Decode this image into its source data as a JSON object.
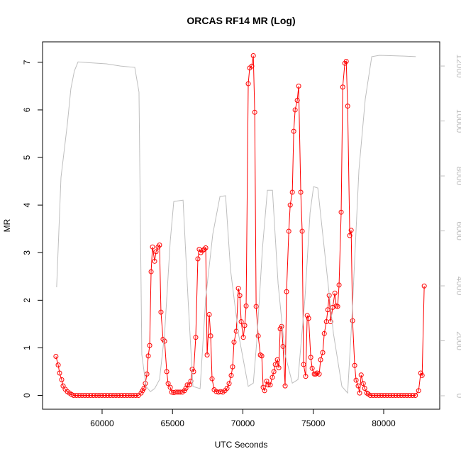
{
  "chart_data": {
    "type": "line",
    "title": "ORCAS RF14 MR (Log)",
    "x_label": "UTC Seconds",
    "y_label": "MR",
    "xlim": [
      55770,
      83980
    ],
    "xticks": [
      60000,
      65000,
      70000,
      75000,
      80000
    ],
    "ylim": [
      -0.29,
      7.43
    ],
    "yticks": [
      0,
      1,
      2,
      3,
      4,
      5,
      6,
      7
    ],
    "y2lim": [
      -490,
      12880
    ],
    "y2ticks": [
      0,
      2000,
      4000,
      6000,
      8000,
      10000,
      12000
    ],
    "y2_color": "#bebebe",
    "series": [
      {
        "color": "#ff0000",
        "marker": "circle",
        "x": [
          56720,
          56880,
          56980,
          57130,
          57230,
          57380,
          57530,
          57680,
          57830,
          57980,
          58180,
          58380,
          58580,
          58780,
          58980,
          59180,
          59380,
          59580,
          59780,
          59980,
          60180,
          60380,
          60580,
          60780,
          60980,
          61180,
          61380,
          61580,
          61780,
          61980,
          62180,
          62380,
          62580,
          62770,
          62870,
          62970,
          63070,
          63180,
          63280,
          63380,
          63480,
          63580,
          63730,
          63830,
          63980,
          64080,
          64180,
          64330,
          64440,
          64590,
          64690,
          64840,
          64940,
          65090,
          65240,
          65390,
          65540,
          65700,
          65850,
          65950,
          66050,
          66200,
          66300,
          66400,
          66500,
          66650,
          66800,
          66900,
          67010,
          67160,
          67260,
          67360,
          67460,
          67610,
          67710,
          67810,
          67960,
          68110,
          68270,
          68420,
          68570,
          68720,
          68870,
          69020,
          69170,
          69270,
          69370,
          69530,
          69680,
          69780,
          69880,
          70030,
          70130,
          70230,
          70380,
          70480,
          70630,
          70740,
          70840,
          70940,
          71090,
          71240,
          71340,
          71440,
          71540,
          71690,
          71790,
          71940,
          72090,
          72200,
          72300,
          72450,
          72550,
          72650,
          72750,
          72850,
          73000,
          73100,
          73260,
          73360,
          73510,
          73610,
          73710,
          73860,
          73960,
          74110,
          74210,
          74310,
          74460,
          74570,
          74670,
          74820,
          74920,
          75070,
          75170,
          75270,
          75420,
          75520,
          75670,
          75780,
          75930,
          76030,
          76130,
          76230,
          76380,
          76530,
          76630,
          76730,
          76830,
          76980,
          77090,
          77240,
          77340,
          77440,
          77590,
          77690,
          77790,
          77940,
          78040,
          78190,
          78290,
          78400,
          78550,
          78650,
          78800,
          78900,
          79050,
          79250,
          79450,
          79650,
          79850,
          80050,
          80250,
          80450,
          80650,
          80850,
          81050,
          81250,
          81450,
          81650,
          81850,
          82050,
          82250,
          82480,
          82630,
          82730,
          82880
        ],
        "values": [
          0.82,
          0.64,
          0.47,
          0.33,
          0.2,
          0.13,
          0.08,
          0.05,
          0.02,
          0,
          0,
          0,
          0,
          0,
          0,
          0,
          0,
          0,
          0,
          0,
          0,
          0,
          0,
          0,
          0,
          0,
          0,
          0,
          0,
          0,
          0,
          0,
          0,
          0.05,
          0.1,
          0.15,
          0.25,
          0.45,
          0.83,
          1.05,
          2.6,
          3.12,
          2.82,
          3.02,
          3.12,
          3.16,
          1.75,
          1.18,
          1.14,
          0.5,
          0.25,
          0.17,
          0.07,
          0.06,
          0.07,
          0.07,
          0.07,
          0.07,
          0.1,
          0.15,
          0.22,
          0.22,
          0.3,
          0.55,
          0.5,
          1.22,
          2.87,
          3.07,
          3.0,
          3.05,
          3.07,
          3.1,
          0.85,
          1.7,
          1.25,
          0.35,
          0.12,
          0.08,
          0.07,
          0.08,
          0.07,
          0.1,
          0.15,
          0.25,
          0.42,
          0.6,
          1.12,
          1.35,
          2.25,
          2.1,
          1.55,
          1.22,
          1.47,
          1.88,
          6.55,
          6.88,
          6.92,
          7.14,
          5.95,
          1.87,
          1.25,
          0.85,
          0.83,
          0.17,
          0.1,
          0.3,
          0.22,
          0.22,
          0.38,
          0.5,
          0.65,
          0.75,
          0.58,
          1.4,
          1.45,
          1.03,
          0.2,
          2.18,
          3.45,
          4.0,
          4.27,
          5.55,
          6.0,
          6.2,
          6.5,
          4.27,
          3.45,
          0.65,
          0.4,
          1.68,
          1.62,
          0.8,
          0.57,
          0.45,
          0.45,
          0.47,
          0.45,
          0.75,
          0.9,
          1.3,
          1.55,
          1.8,
          2.1,
          1.55,
          1.85,
          2.15,
          1.88,
          1.87,
          2.32,
          3.85,
          6.48,
          6.98,
          7.02,
          6.08,
          3.36,
          3.47,
          1.57,
          0.63,
          0.32,
          0.2,
          0.05,
          0.43,
          0.25,
          0.15,
          0.05,
          0.03,
          0,
          0,
          0,
          0,
          0,
          0,
          0,
          0,
          0,
          0,
          0,
          0,
          0,
          0,
          0,
          0,
          0,
          0.1,
          0.47,
          0.42,
          2.3
        ]
      },
      {
        "color": "#bebebe",
        "axis": "y2",
        "x": [
          56770,
          57080,
          57530,
          57780,
          58030,
          58290,
          58790,
          60300,
          61310,
          62320,
          62620,
          62820,
          63120,
          63430,
          63730,
          64080,
          64440,
          64840,
          65090,
          65750,
          66100,
          66450,
          66960,
          67110,
          67360,
          67860,
          68370,
          68770,
          69120,
          69680,
          70380,
          70740,
          70990,
          71390,
          71740,
          72100,
          72500,
          73000,
          73510,
          73910,
          74410,
          74770,
          75020,
          75320,
          75670,
          76430,
          77030,
          77440,
          77740,
          78240,
          78690,
          79150,
          79700,
          81470,
          82280
        ],
        "values": [
          3950,
          7950,
          9880,
          11170,
          11820,
          12150,
          12130,
          12080,
          12000,
          11950,
          11050,
          1500,
          340,
          150,
          260,
          590,
          2270,
          5630,
          7070,
          7120,
          3560,
          340,
          260,
          1500,
          3560,
          5880,
          7250,
          7280,
          4590,
          2270,
          340,
          460,
          2010,
          5370,
          7480,
          7480,
          4080,
          1500,
          460,
          590,
          3560,
          6660,
          7610,
          7560,
          5880,
          2270,
          340,
          100,
          2790,
          8210,
          10790,
          12340,
          12390,
          12360,
          12340
        ]
      }
    ]
  }
}
